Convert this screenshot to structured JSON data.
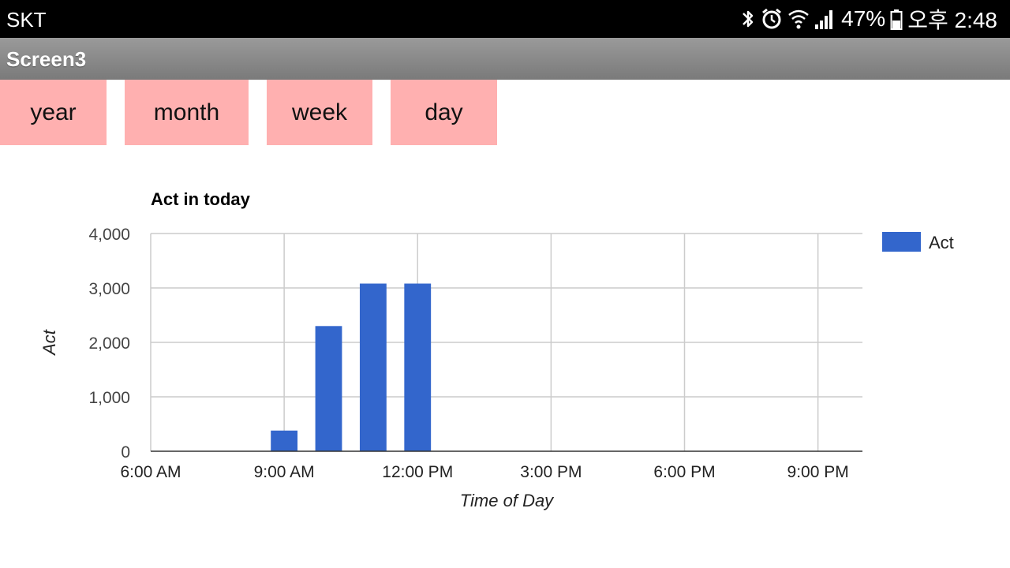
{
  "status_bar": {
    "carrier": "SKT",
    "battery": "47%",
    "time": "오후 2:48",
    "icons": [
      "bluetooth-icon",
      "alarm-icon",
      "wifi-icon",
      "signal-icon",
      "battery-icon"
    ]
  },
  "app": {
    "title": "Screen3"
  },
  "tabs": [
    {
      "label": "year"
    },
    {
      "label": "month"
    },
    {
      "label": "week"
    },
    {
      "label": "day"
    }
  ],
  "colors": {
    "button": "#ffb0b0",
    "bar": "#3366cc",
    "titlebar": "#8a8a8a",
    "statusbar": "#000000"
  },
  "chart_data": {
    "type": "bar",
    "title": "Act in today",
    "xlabel": "Time of Day",
    "ylabel": "Act",
    "ylim": [
      0,
      4000
    ],
    "yticks": [
      0,
      1000,
      2000,
      3000,
      4000
    ],
    "ytick_labels": [
      "0",
      "1,000",
      "2,000",
      "3,000",
      "4,000"
    ],
    "xlim": [
      6,
      22
    ],
    "xticks": [
      6,
      9,
      12,
      15,
      18,
      21
    ],
    "xtick_labels": [
      "6:00 AM",
      "9:00 AM",
      "12:00 PM",
      "3:00 PM",
      "6:00 PM",
      "9:00 PM"
    ],
    "grid": true,
    "legend": "right",
    "series": [
      {
        "name": "Act",
        "color": "#3366cc",
        "x": [
          9,
          10,
          11,
          12
        ],
        "values": [
          380,
          2300,
          3080,
          3080
        ]
      }
    ]
  }
}
